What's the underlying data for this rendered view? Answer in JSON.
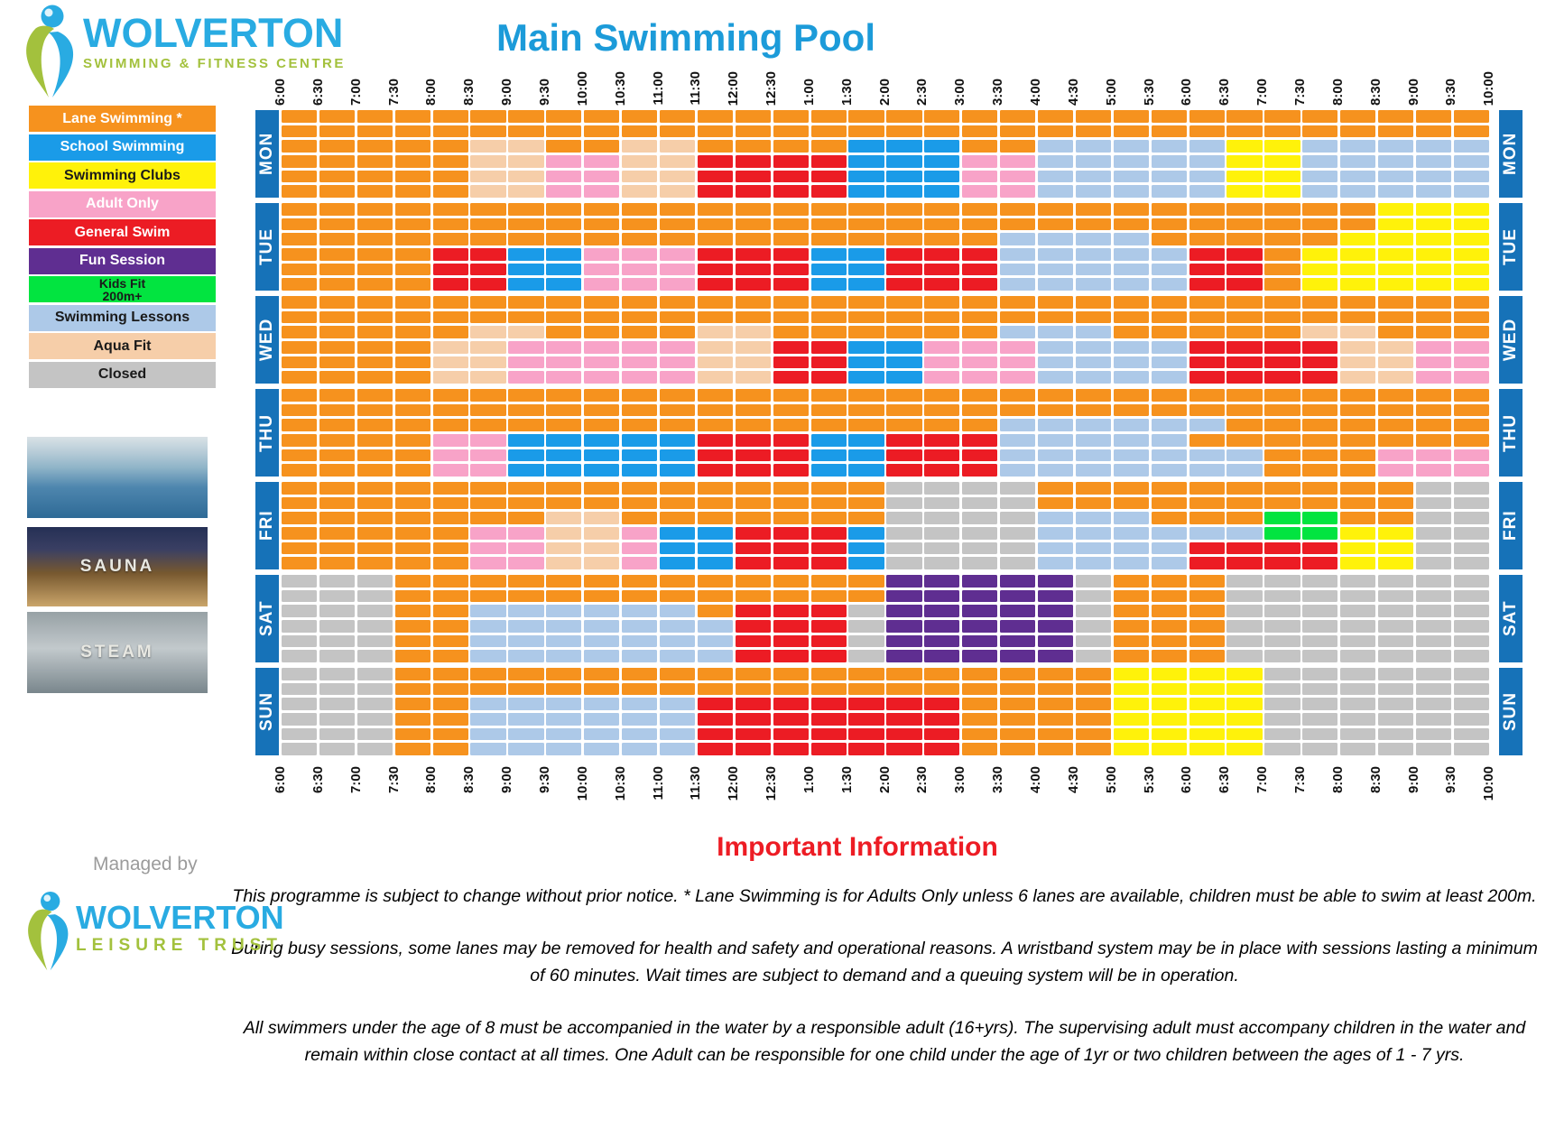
{
  "header": {
    "brand_name": "WOLVERTON",
    "brand_tagline": "SWIMMING & FITNESS CENTRE",
    "title": "Main Swimming Pool"
  },
  "colors": {
    "title_blue": "#1C9BD9",
    "brand_blue": "#29ABE2",
    "brand_green": "#A3C13D",
    "heading_red": "#ED1C24",
    "day_strip_blue": "#1672B8"
  },
  "legend": {
    "items": [
      {
        "code": "O",
        "label": "Lane Swimming *"
      },
      {
        "code": "B",
        "label": "School Swimming"
      },
      {
        "code": "Y",
        "label": "Swimming Clubs"
      },
      {
        "code": "P",
        "label": "Adult Only"
      },
      {
        "code": "R",
        "label": "General Swim"
      },
      {
        "code": "U",
        "label": "Fun Session"
      },
      {
        "code": "G",
        "label": "Kids Fit\n200m+"
      },
      {
        "code": "L",
        "label": "Swimming Lessons"
      },
      {
        "code": "A",
        "label": "Aqua Fit"
      },
      {
        "code": "C",
        "label": "Closed"
      }
    ]
  },
  "palette": {
    "O": {
      "bg": "#F6921E",
      "fg": "#FFFFFF"
    },
    "B": {
      "bg": "#1A9BE8",
      "fg": "#FFFFFF"
    },
    "Y": {
      "bg": "#FFF20A",
      "fg": "#1A1A1A"
    },
    "P": {
      "bg": "#F8A3C8",
      "fg": "#FFFFFF"
    },
    "R": {
      "bg": "#EC1C24",
      "fg": "#FFFFFF"
    },
    "U": {
      "bg": "#5F2E91",
      "fg": "#FFFFFF"
    },
    "G": {
      "bg": "#02E440",
      "fg": "#1A1A1A"
    },
    "L": {
      "bg": "#ADC9E8",
      "fg": "#1A1A1A"
    },
    "A": {
      "bg": "#F6CEA9",
      "fg": "#1A1A1A"
    },
    "C": {
      "bg": "#C4C4C4",
      "fg": "#1A1A1A"
    }
  },
  "grid": {
    "time_labels": [
      "6:00",
      "6:30",
      "7:00",
      "7:30",
      "8:00",
      "8:30",
      "9:00",
      "9:30",
      "10:00",
      "10:30",
      "11:00",
      "11:30",
      "12:00",
      "12:30",
      "1:00",
      "1:30",
      "2:00",
      "2:30",
      "3:00",
      "3:30",
      "4:00",
      "4:30",
      "5:00",
      "5:30",
      "6:00",
      "6:30",
      "7:00",
      "7:30",
      "8:00",
      "8:30",
      "9:00",
      "9:30",
      "10:00"
    ],
    "days": [
      {
        "name": "MON",
        "rows": [
          "OOOOOOOOOOOOOOOOOOOOOOOOOOOOOOOO",
          "OOOOOOOOOOOOOOOOOOOOOOOOOOOOOOOO",
          "OOOOOAAOOAAOOOOBBBOOLLLLLYYLLLLL",
          "OOOOOAAPPAARRRRBBBPPLLLLLYYLLLLL",
          "OOOOOAAPPAARRRRBBBPPLLLLLYYLLLLL",
          "OOOOOAAPPAARRRRBBBPPLLLLLYYLLLLL"
        ]
      },
      {
        "name": "TUE",
        "rows": [
          "OOOOOOOOOOOOOOOOOOOOOOOOOOOOOYYY",
          "OOOOOOOOOOOOOOOOOOOOOOOOOOOOOYYY",
          "OOOOOOOOOOOOOOOOOOOLLLLOOOOOYYYY",
          "OOOORRBBPPPRRRBBRRRLLLLLRROYYYYY",
          "OOOORRBBPPPRRRBBRRRLLLLLRROYYYYY",
          "OOOORRBBPPPRRRBBRRRLLLLLRROYYYYY"
        ]
      },
      {
        "name": "WED",
        "rows": [
          "OOOOOOOOOOOOOOOOOOOOOOOOOOOOOOOO",
          "OOOOOOOOOOOOOOOOOOOOOOOOOOOOOOOO",
          "OOOOOAAOOOOAAOOOOOOLLLOOOOOAAOOO",
          "OOOOAAPPPPPAARRBBPPPLLLLRRRRAAPP",
          "OOOOAAPPPPPAARRBBPPPLLLLRRRRAAPP",
          "OOOOAAPPPPPAARRBBPPPLLLLRRRRAAPP"
        ]
      },
      {
        "name": "THU",
        "rows": [
          "OOOOOOOOOOOOOOOOOOOOOOOOOOOOOOOO",
          "OOOOOOOOOOOOOOOOOOOOOOOOOOOOOOOO",
          "OOOOOOOOOOOOOOOOOOOLLLLLLOOOOOOO",
          "OOOOPPBBBBBRRRBBRRRLLLLLOOOOOOOO",
          "OOOOPPBBBBBRRRBBRRRLLLLLLLOOOPPP",
          "OOOOPPBBBBBRRRBBRRRLLLLLLLOOOPPP"
        ]
      },
      {
        "name": "FRI",
        "rows": [
          "OOOOOOOOOOOOOOOOCCCCOOOOOOOOOOCC",
          "OOOOOOOOOOOOOOOOCCCCOOOOOOOOOOCC",
          "OOOOOOOAAOOOOOOOCCCCLLLOOOGGOOCC",
          "OOOOOPPAAPBBRRRBCCCCLLLLLLGGYYCC",
          "OOOOOPPAAPBBRRRBCCCCLLLLRRRRYYCC",
          "OOOOOPPAAPBBRRRBCCCCLLLLRRRRYYCC"
        ]
      },
      {
        "name": "SAT",
        "rows": [
          "CCCOOOOOOOOOOOOOUUUUUCOOOCCCCCCC",
          "CCCOOOOOOOOOOOOOUUUUUCOOOCCCCCCC",
          "CCCOOLLLLLLORRRCUUUUUCOOOCCCCCCC",
          "CCCOOLLLLLLLRRRCUUUUUCOOOCCCCCCC",
          "CCCOOLLLLLLLRRRCUUUUUCOOOCCCCCCC",
          "CCCOOLLLLLLLRRRCUUUUUCOOOCCCCCCC"
        ]
      },
      {
        "name": "SUN",
        "rows": [
          "CCCOOOOOOOOOOOOOOOOOOOYYYYCCCCCC",
          "CCCOOOOOOOOOOOOOOOOOOOYYYYCCCCCC",
          "CCCOOLLLLLLRRRRRRROOOOYYYYCCCCCC",
          "CCCOOLLLLLLRRRRRRROOOOYYYYCCCCCC",
          "CCCOOLLLLLLRRRRRRROOOOYYYYCCCCCC",
          "CCCOOLLLLLLRRRRRRROOOOYYYYCCCCCC"
        ]
      }
    ]
  },
  "photos": [
    {
      "name": "pool-photo",
      "overlay": ""
    },
    {
      "name": "sauna-photo",
      "overlay": "SAUNA"
    },
    {
      "name": "steam-photo",
      "overlay": "STEAM"
    }
  ],
  "footer": {
    "heading": "Important Information",
    "managed_by": "Managed by",
    "trust_name": "WOLVERTON",
    "trust_tagline": "LEISURE TRUST",
    "paragraphs": [
      "This programme is subject to change without prior notice.  * Lane Swimming is for Adults Only unless 6 lanes are available, children must be able to swim at least 200m.",
      "During busy sessions, some lanes may be removed for health and safety and operational reasons. A wristband system may be in place with sessions lasting a minimum of 60 minutes. Wait times are subject to demand and a queuing system will be in operation.",
      "All swimmers under the age of 8 must be accompanied in the water by a responsible adult (16+yrs). The supervising adult must accompany children in the water and remain within close contact at all times.  One Adult can be responsible for one child under the age of 1yr or two children between the ages of 1 - 7 yrs."
    ]
  }
}
